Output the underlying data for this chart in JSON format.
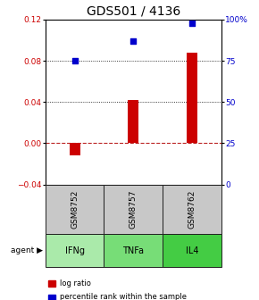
{
  "title": "GDS501 / 4136",
  "samples": [
    "GSM8752",
    "GSM8757",
    "GSM8762"
  ],
  "agents": [
    "IFNg",
    "TNFa",
    "IL4"
  ],
  "log_ratios": [
    -0.012,
    0.042,
    0.088
  ],
  "percentile_ranks_pct": [
    75,
    87,
    98
  ],
  "left_ylim": [
    -0.04,
    0.12
  ],
  "right_ylim": [
    0,
    100
  ],
  "left_yticks": [
    -0.04,
    0.0,
    0.04,
    0.08,
    0.12
  ],
  "right_yticks": [
    0,
    25,
    50,
    75,
    100
  ],
  "right_yticklabels": [
    "0",
    "25",
    "50",
    "75",
    "100%"
  ],
  "dotted_levels": [
    0.04,
    0.08
  ],
  "bar_color": "#cc0000",
  "scatter_color": "#0000cc",
  "zero_line_color": "#bb2222",
  "gray_cell_color": "#c8c8c8",
  "green_cell_colors": [
    "#aaeaaa",
    "#77dd77",
    "#44cc44"
  ],
  "cell_border_color": "#222222",
  "legend_bar_color": "#cc0000",
  "legend_dot_color": "#0000cc",
  "title_fontsize": 10,
  "axis_fontsize": 6.5,
  "cell_fontsize": 6.5,
  "agent_fontsize": 7,
  "legend_fontsize": 6
}
